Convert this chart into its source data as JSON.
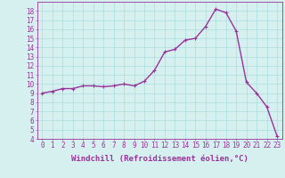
{
  "x": [
    0,
    1,
    2,
    3,
    4,
    5,
    6,
    7,
    8,
    9,
    10,
    11,
    12,
    13,
    14,
    15,
    16,
    17,
    18,
    19,
    20,
    21,
    22,
    23
  ],
  "y": [
    9.0,
    9.2,
    9.5,
    9.5,
    9.8,
    9.8,
    9.7,
    9.8,
    10.0,
    9.8,
    10.3,
    11.5,
    13.5,
    13.8,
    14.8,
    15.0,
    16.3,
    18.2,
    17.8,
    15.8,
    10.2,
    9.0,
    7.5,
    4.3
  ],
  "line_color": "#993399",
  "marker_color": "#993399",
  "bg_color": "#d6f0f0",
  "grid_color": "#aadddd",
  "xlabel": "Windchill (Refroidissement éolien,°C)",
  "xlim": [
    -0.5,
    23.5
  ],
  "ylim": [
    4,
    19
  ],
  "yticks": [
    4,
    5,
    6,
    7,
    8,
    9,
    10,
    11,
    12,
    13,
    14,
    15,
    16,
    17,
    18
  ],
  "xticks": [
    0,
    1,
    2,
    3,
    4,
    5,
    6,
    7,
    8,
    9,
    10,
    11,
    12,
    13,
    14,
    15,
    16,
    17,
    18,
    19,
    20,
    21,
    22,
    23
  ],
  "xlabel_color": "#993399",
  "tick_color": "#993399",
  "axis_color": "#993399",
  "tick_fontsize": 5.5,
  "xlabel_fontsize": 6.5,
  "marker_size": 2.5,
  "line_width": 1.0
}
